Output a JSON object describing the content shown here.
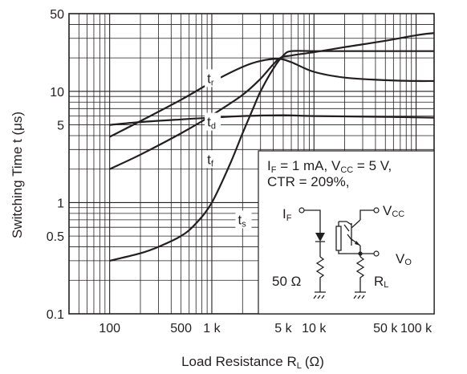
{
  "chart_data": {
    "type": "line",
    "x_scale": "log",
    "y_scale": "log",
    "xlim": [
      40,
      150000
    ],
    "ylim": [
      0.1,
      50
    ],
    "xlabel": "Load Resistance R",
    "xlabel_sub": "L",
    "xlabel_unit": "(Ω)",
    "ylabel": "Switching Time t (μs)",
    "x_ticks": [
      {
        "value": 100,
        "label": "100"
      },
      {
        "value": 500,
        "label": "500"
      },
      {
        "value": 1000,
        "label": "1 k"
      },
      {
        "value": 5000,
        "label": "5 k"
      },
      {
        "value": 10000,
        "label": "10 k"
      },
      {
        "value": 50000,
        "label": "50 k"
      },
      {
        "value": 100000,
        "label": "100 k"
      }
    ],
    "y_ticks": [
      {
        "value": 0.1,
        "label": "0.1"
      },
      {
        "value": 0.5,
        "label": "0.5"
      },
      {
        "value": 1,
        "label": "1"
      },
      {
        "value": 5,
        "label": "5"
      },
      {
        "value": 10,
        "label": "10"
      },
      {
        "value": 50,
        "label": "50"
      }
    ],
    "grid": true,
    "series": [
      {
        "name": "t",
        "sub": "r",
        "label_at": [
          900,
          12.3
        ],
        "x": [
          100,
          200,
          500,
          1000,
          2000,
          3000,
          4500,
          6000,
          10000,
          20000,
          50000,
          100000,
          150000
        ],
        "y": [
          3.9,
          5.4,
          8.4,
          12.1,
          16.6,
          18.8,
          19.6,
          18.3,
          15.0,
          13.3,
          12.6,
          12.4,
          12.4
        ]
      },
      {
        "name": "t",
        "sub": "d",
        "label_at": [
          900,
          5.0
        ],
        "x": [
          100,
          200,
          500,
          1000,
          2000,
          5000,
          10000,
          50000,
          150000
        ],
        "y": [
          5.0,
          5.3,
          5.6,
          5.8,
          6.0,
          6.1,
          6.0,
          5.9,
          5.8
        ]
      },
      {
        "name": "t",
        "sub": "f",
        "label_at": [
          900,
          2.3
        ],
        "x": [
          100,
          200,
          500,
          1000,
          2000,
          3000,
          4500,
          6000,
          10000,
          20000,
          50000,
          100000,
          150000
        ],
        "y": [
          2.0,
          2.7,
          4.2,
          6.1,
          9.3,
          13.0,
          19.5,
          21.0,
          22.5,
          25.0,
          28.5,
          32.0,
          33.5
        ]
      },
      {
        "name": "t",
        "sub": "s",
        "label_at": [
          1800,
          0.66
        ],
        "x": [
          100,
          200,
          300,
          500,
          700,
          1000,
          1500,
          2000,
          2500,
          3000,
          4000,
          5000,
          6000,
          10000,
          20000,
          50000,
          150000
        ],
        "y": [
          0.3,
          0.35,
          0.4,
          0.5,
          0.65,
          1.0,
          2.2,
          4.2,
          6.8,
          10.0,
          16.0,
          21.0,
          23.0,
          23.0,
          23.0,
          23.0,
          23.0
        ]
      }
    ],
    "annotation": {
      "line1": [
        "I",
        "F",
        " = 1 mA, V",
        "CC",
        " = 5 V,"
      ],
      "line2": "CTR = 209%,"
    },
    "circuit": {
      "input_label": [
        "I",
        "F"
      ],
      "vcc_label": [
        "V",
        "CC"
      ],
      "vo_label": [
        "V",
        "O"
      ],
      "resistor_label": "50 Ω",
      "rl_label": [
        "R",
        "L"
      ]
    }
  }
}
